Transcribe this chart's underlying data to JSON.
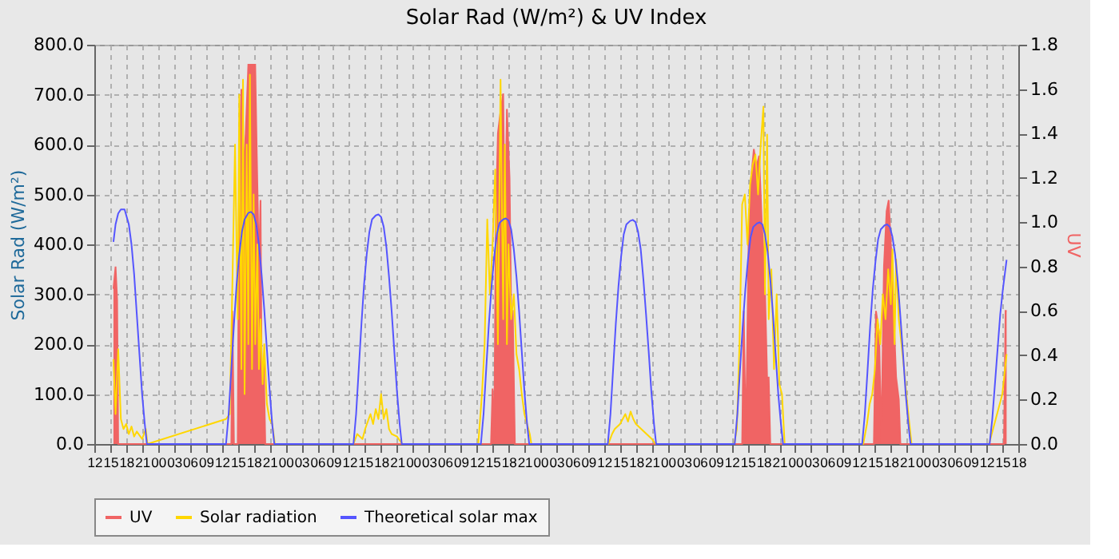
{
  "chart_data": {
    "type": "line",
    "title": "Solar Rad (W/m²) &  UV Index",
    "ylabel": "Solar Rad (W/m²)",
    "y2label": "UV",
    "xlim": [
      12,
      186
    ],
    "xticks": [
      {
        "value": 12,
        "label": "12"
      },
      {
        "value": 15,
        "label": "15"
      },
      {
        "value": 18,
        "label": "18"
      },
      {
        "value": 21,
        "label": "21"
      },
      {
        "value": 24,
        "label": "00"
      },
      {
        "value": 27,
        "label": "03"
      },
      {
        "value": 30,
        "label": "06"
      },
      {
        "value": 33,
        "label": "09"
      },
      {
        "value": 36,
        "label": "12"
      },
      {
        "value": 39,
        "label": "15"
      },
      {
        "value": 42,
        "label": "18"
      },
      {
        "value": 45,
        "label": "21"
      },
      {
        "value": 48,
        "label": "00"
      },
      {
        "value": 51,
        "label": "03"
      },
      {
        "value": 54,
        "label": "06"
      },
      {
        "value": 57,
        "label": "09"
      },
      {
        "value": 60,
        "label": "12"
      },
      {
        "value": 63,
        "label": "15"
      },
      {
        "value": 66,
        "label": "18"
      },
      {
        "value": 69,
        "label": "21"
      },
      {
        "value": 72,
        "label": "00"
      },
      {
        "value": 75,
        "label": "03"
      },
      {
        "value": 78,
        "label": "06"
      },
      {
        "value": 81,
        "label": "09"
      },
      {
        "value": 84,
        "label": "12"
      },
      {
        "value": 87,
        "label": "15"
      },
      {
        "value": 90,
        "label": "18"
      },
      {
        "value": 93,
        "label": "21"
      },
      {
        "value": 96,
        "label": "00"
      },
      {
        "value": 99,
        "label": "03"
      },
      {
        "value": 102,
        "label": "06"
      },
      {
        "value": 105,
        "label": "09"
      },
      {
        "value": 108,
        "label": "12"
      },
      {
        "value": 111,
        "label": "15"
      },
      {
        "value": 114,
        "label": "18"
      },
      {
        "value": 117,
        "label": "21"
      },
      {
        "value": 120,
        "label": "00"
      },
      {
        "value": 123,
        "label": "03"
      },
      {
        "value": 126,
        "label": "06"
      },
      {
        "value": 129,
        "label": "09"
      },
      {
        "value": 132,
        "label": "12"
      },
      {
        "value": 135,
        "label": "15"
      },
      {
        "value": 138,
        "label": "18"
      },
      {
        "value": 141,
        "label": "21"
      },
      {
        "value": 144,
        "label": "00"
      },
      {
        "value": 147,
        "label": "03"
      },
      {
        "value": 150,
        "label": "06"
      },
      {
        "value": 153,
        "label": "09"
      },
      {
        "value": 156,
        "label": "12"
      },
      {
        "value": 159,
        "label": "15"
      },
      {
        "value": 162,
        "label": "18"
      },
      {
        "value": 165,
        "label": "21"
      },
      {
        "value": 168,
        "label": "00"
      },
      {
        "value": 171,
        "label": "03"
      },
      {
        "value": 174,
        "label": "06"
      },
      {
        "value": 177,
        "label": "09"
      },
      {
        "value": 180,
        "label": "12"
      },
      {
        "value": 183,
        "label": "15"
      },
      {
        "value": 186,
        "label": "18"
      }
    ],
    "ylim": [
      0,
      800
    ],
    "yticks": [
      {
        "value": 0,
        "label": "0.0"
      },
      {
        "value": 100,
        "label": "100.0"
      },
      {
        "value": 200,
        "label": "200.0"
      },
      {
        "value": 300,
        "label": "300.0"
      },
      {
        "value": 400,
        "label": "400.0"
      },
      {
        "value": 500,
        "label": "500.0"
      },
      {
        "value": 600,
        "label": "600.0"
      },
      {
        "value": 700,
        "label": "700.0"
      },
      {
        "value": 800,
        "label": "800.0"
      }
    ],
    "y2lim": [
      0,
      1.8
    ],
    "y2ticks": [
      {
        "value": 0,
        "label": "0.0"
      },
      0.2,
      0.4,
      0.6,
      0.8,
      {
        "value": 1,
        "label": "1.0"
      },
      1.2,
      1.4,
      1.6,
      1.8
    ],
    "grid": true,
    "legend": "bottom",
    "marker": "none",
    "line_style": "solid",
    "series": [
      {
        "name": "UV",
        "type": "area",
        "axis": "y2",
        "color": "#f06464",
        "x": [
          15.6,
          16,
          16.3,
          16.5,
          37.8,
          38,
          38.3,
          39,
          39.3,
          39.7,
          40,
          40.5,
          41,
          42.3,
          42.6,
          43,
          43.3,
          43.6,
          43.9,
          44.2,
          86.7,
          87,
          87.3,
          87.6,
          88,
          88.5,
          89,
          89.3,
          89.7,
          90.2,
          90.5,
          90.8,
          91.2,
          134,
          134.3,
          134.7,
          135.2,
          135.7,
          136.2,
          136.7,
          137.2,
          137.7,
          138.2,
          138.7,
          139,
          139.3,
          158.8,
          159.2,
          159.8,
          160.2,
          160.7,
          161.2,
          161.6,
          162,
          162.5,
          163,
          163.5,
          163.8,
          183.3,
          183.6,
          183.8
        ],
        "values": [
          0.7,
          0.8,
          0.65,
          0,
          0,
          0.6,
          0,
          0,
          1.3,
          1.6,
          1.2,
          1.4,
          1.71,
          1.71,
          1.3,
          0.8,
          1.1,
          0,
          0.37,
          0,
          0,
          0.25,
          0,
          1.0,
          1.4,
          1.5,
          1.58,
          0.9,
          1.51,
          1.2,
          0.6,
          0.6,
          0,
          0,
          0.6,
          0,
          0.9,
          1.2,
          1.33,
          1.25,
          1.3,
          1.0,
          0.8,
          0.3,
          0.3,
          0,
          0,
          0.6,
          0.5,
          0,
          0.8,
          1.05,
          1.1,
          0.9,
          0.6,
          0.3,
          0.2,
          0,
          0,
          0.6,
          0.6
        ]
      },
      {
        "name": "Solar radiation",
        "type": "line",
        "color": "#ffd700",
        "x": [
          15.6,
          16,
          16.5,
          17,
          17.5,
          18,
          18.5,
          19,
          19.5,
          20,
          21,
          21.7,
          22,
          36.8,
          37.5,
          38,
          38.5,
          39,
          39.3,
          39.7,
          40,
          40.3,
          40.7,
          41,
          41.3,
          41.7,
          42,
          42.3,
          42.7,
          43,
          43.3,
          43.7,
          44,
          44.5,
          45,
          45.5,
          46,
          60.8,
          61.5,
          62.5,
          63,
          64,
          64.5,
          65,
          65.5,
          66,
          66.5,
          67,
          67.5,
          68,
          69,
          70,
          84.3,
          85,
          85.5,
          86,
          86.5,
          87,
          87.5,
          88,
          88.5,
          89,
          89.3,
          89.7,
          90,
          90.5,
          91,
          91.5,
          92,
          92.5,
          93,
          93.5,
          94,
          94.3,
          108.8,
          109.5,
          110,
          111,
          112,
          112.5,
          113,
          113.5,
          114,
          115,
          116,
          117,
          117.7,
          132.5,
          133,
          133.5,
          134,
          134.5,
          135,
          135.5,
          136,
          136.5,
          137,
          137.5,
          138,
          138.3,
          138.7,
          139,
          139.5,
          140,
          140.5,
          141,
          141.5,
          142,
          156.8,
          157.5,
          158,
          158.5,
          159,
          159.5,
          160,
          160.5,
          161,
          161.5,
          162,
          162.3,
          162.7,
          163,
          163.5,
          164,
          164.5,
          165,
          165.5,
          165.9,
          180.5,
          181,
          182,
          183,
          183.8
        ],
        "values": [
          170,
          60,
          190,
          50,
          30,
          40,
          20,
          35,
          15,
          25,
          10,
          30,
          0,
          50,
          60,
          320,
          600,
          250,
          700,
          150,
          730,
          100,
          600,
          200,
          740,
          150,
          500,
          200,
          400,
          150,
          250,
          120,
          200,
          80,
          50,
          40,
          0,
          0,
          20,
          10,
          30,
          60,
          40,
          70,
          50,
          100,
          50,
          70,
          30,
          20,
          15,
          0,
          0,
          100,
          200,
          450,
          300,
          400,
          550,
          200,
          730,
          250,
          600,
          200,
          400,
          250,
          300,
          180,
          150,
          100,
          60,
          40,
          20,
          0,
          0,
          20,
          30,
          40,
          60,
          45,
          65,
          50,
          40,
          30,
          20,
          10,
          0,
          0,
          30,
          200,
          480,
          500,
          400,
          520,
          560,
          580,
          500,
          600,
          676,
          300,
          620,
          250,
          350,
          150,
          300,
          120,
          100,
          0,
          0,
          40,
          80,
          100,
          150,
          250,
          200,
          300,
          250,
          350,
          280,
          390,
          200,
          370,
          250,
          200,
          150,
          90,
          40,
          0,
          0,
          20,
          60,
          100,
          180
        ]
      },
      {
        "name": "Theoretical solar max",
        "type": "line",
        "color": "#5555ff",
        "x": [
          15.6,
          16,
          16.5,
          17,
          17.7,
          18.5,
          19,
          19.5,
          20,
          20.5,
          21,
          21.5,
          21.9,
          36.8,
          37.3,
          37.8,
          38.3,
          38.8,
          39.3,
          39.8,
          40.3,
          41,
          41.5,
          42,
          42.5,
          43,
          43.5,
          44,
          44.5,
          45,
          45.5,
          45.9,
          60.8,
          61.3,
          61.8,
          62.3,
          62.8,
          63.3,
          63.8,
          64.3,
          65,
          65.5,
          66,
          66.5,
          67,
          67.5,
          68,
          68.5,
          69,
          69.5,
          69.9,
          84.8,
          85.3,
          85.8,
          86.3,
          86.8,
          87.3,
          87.8,
          88.3,
          89,
          89.5,
          90,
          90.5,
          91,
          91.5,
          92,
          92.5,
          93,
          93.5,
          93.9,
          108.7,
          109.2,
          109.7,
          110.2,
          110.7,
          111.2,
          111.7,
          112.2,
          112.9,
          113.4,
          113.9,
          114.4,
          114.9,
          115.4,
          115.9,
          116.4,
          116.9,
          117.4,
          117.8,
          132.6,
          133.1,
          133.6,
          134.1,
          134.6,
          135.1,
          135.6,
          136.1,
          136.8,
          137.3,
          137.8,
          138.3,
          138.8,
          139.3,
          139.8,
          140.3,
          140.8,
          141.3,
          141.7,
          156.6,
          157.1,
          157.6,
          158.1,
          158.6,
          159.1,
          159.6,
          160.1,
          160.8,
          161.3,
          161.8,
          162.3,
          162.8,
          163.3,
          163.8,
          164.3,
          164.8,
          165.3,
          165.7,
          180.6,
          181.1,
          181.6,
          182.1,
          182.6,
          183.1,
          183.8
        ],
        "values": [
          405,
          440,
          462,
          470,
          470,
          440,
          400,
          340,
          260,
          180,
          100,
          40,
          0,
          0,
          60,
          150,
          240,
          320,
          380,
          425,
          450,
          463,
          465,
          460,
          440,
          400,
          340,
          270,
          190,
          110,
          40,
          0,
          0,
          60,
          150,
          240,
          320,
          380,
          425,
          450,
          458,
          460,
          455,
          435,
          395,
          335,
          265,
          185,
          105,
          40,
          0,
          0,
          60,
          150,
          240,
          315,
          375,
          420,
          443,
          450,
          452,
          448,
          430,
          390,
          335,
          265,
          185,
          105,
          40,
          0,
          0,
          60,
          150,
          240,
          315,
          375,
          420,
          440,
          447,
          449,
          445,
          425,
          390,
          330,
          260,
          185,
          105,
          40,
          0,
          0,
          60,
          150,
          235,
          310,
          370,
          415,
          435,
          442,
          444,
          440,
          420,
          385,
          330,
          260,
          180,
          100,
          40,
          0,
          0,
          60,
          145,
          235,
          310,
          365,
          410,
          430,
          438,
          440,
          435,
          415,
          380,
          325,
          255,
          180,
          100,
          40,
          0,
          0,
          50,
          120,
          190,
          260,
          310,
          369
        ]
      }
    ]
  }
}
